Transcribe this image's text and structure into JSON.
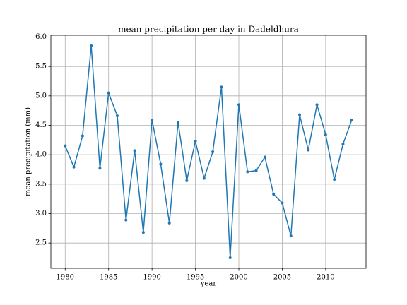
{
  "chart_data": {
    "type": "line",
    "title": "mean precipitation per day in Dadeldhura",
    "xlabel": "year",
    "ylabel": "mean precipitation (mm)",
    "x": [
      1980,
      1981,
      1982,
      1983,
      1984,
      1985,
      1986,
      1987,
      1988,
      1989,
      1990,
      1991,
      1992,
      1993,
      1994,
      1995,
      1996,
      1997,
      1998,
      1999,
      2000,
      2001,
      2002,
      2003,
      2004,
      2005,
      2006,
      2007,
      2008,
      2009,
      2010,
      2011,
      2012,
      2013
    ],
    "series": [
      {
        "name": "mean precipitation",
        "color": "#1f77b4",
        "values": [
          4.15,
          3.79,
          4.32,
          5.85,
          3.77,
          5.05,
          4.66,
          2.89,
          4.07,
          2.68,
          4.59,
          3.84,
          2.84,
          4.55,
          3.56,
          4.23,
          3.6,
          4.05,
          5.15,
          2.25,
          4.85,
          3.71,
          3.73,
          3.96,
          3.33,
          3.18,
          2.62,
          4.68,
          4.08,
          4.85,
          4.34,
          3.58,
          4.18,
          4.59
        ]
      }
    ],
    "xlim": [
      1978.35,
      2014.65
    ],
    "xticks": [
      1980,
      1985,
      1990,
      1995,
      2000,
      2005,
      2010
    ],
    "ylim": [
      2.07,
      6.03
    ],
    "yticks": [
      2.5,
      {
        "value": 3.0,
        "label": "3.0"
      },
      3.5,
      {
        "value": 4.0,
        "label": "4.0"
      },
      4.5,
      {
        "value": 5.0,
        "label": "5.0"
      },
      5.5,
      {
        "value": 6.0,
        "label": "6.0"
      }
    ],
    "grid": true
  }
}
